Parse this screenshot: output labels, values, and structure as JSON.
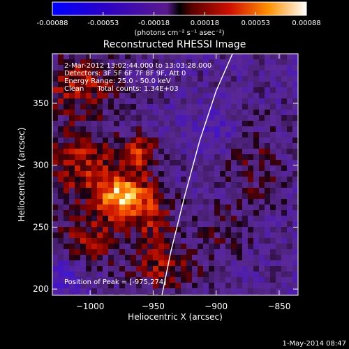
{
  "chart_data": {
    "type": "heatmap",
    "title": "Reconstructed RHESSI Image",
    "colorbar": {
      "ticks": [
        "-0.00088",
        "-0.00053",
        "-0.00018",
        "0.00018",
        "0.00053",
        "0.00088"
      ],
      "units_label": "(photons cm⁻² s⁻¹ asec⁻²)",
      "range": [
        -0.00088,
        0.00088
      ]
    },
    "xlabel": "Heliocentric X (arcsec)",
    "ylabel": "Heliocentric Y (arcsec)",
    "xlim": [
      -1030,
      -835
    ],
    "ylim": [
      195,
      390
    ],
    "xticks": [
      {
        "value": -1000,
        "label": "−1000"
      },
      {
        "value": -950,
        "label": "−950"
      },
      {
        "value": -900,
        "label": "−900"
      },
      {
        "value": -850,
        "label": "−850"
      }
    ],
    "yticks": [
      {
        "value": 200,
        "label": "200"
      },
      {
        "value": 250,
        "label": "250"
      },
      {
        "value": 300,
        "label": "300"
      },
      {
        "value": 350,
        "label": "350"
      }
    ],
    "annotations": [
      "2-Mar-2012 13:02:44.000 to 13:03:28.000",
      "Detectors: 3F 5F 6F 7F 8F 9F, Att 0",
      "Energy Range: 25.0 - 50.0 keV",
      "Clean      Total counts: 1.34E+03"
    ],
    "peak_label": "Position of Peak = [-975,274]",
    "peak": [
      -975,
      274
    ],
    "limb": [
      [
        -943,
        195
      ],
      [
        -936,
        230
      ],
      [
        -925,
        275
      ],
      [
        -913,
        320
      ],
      [
        -900,
        360
      ],
      [
        -887,
        390
      ]
    ],
    "hotspots": [
      {
        "x": -975,
        "y": 274,
        "sx": 14,
        "sy": 12,
        "amp": 1.0
      },
      {
        "x": -1005,
        "y": 300,
        "sx": 22,
        "sy": 22,
        "amp": 0.55
      },
      {
        "x": -1010,
        "y": 365,
        "sx": 22,
        "sy": 16,
        "amp": 0.55
      },
      {
        "x": -960,
        "y": 310,
        "sx": 9,
        "sy": 11,
        "amp": 0.55
      },
      {
        "x": -1000,
        "y": 240,
        "sx": 18,
        "sy": 14,
        "amp": 0.45
      },
      {
        "x": -950,
        "y": 255,
        "sx": 12,
        "sy": 22,
        "amp": 0.45
      },
      {
        "x": -940,
        "y": 215,
        "sx": 20,
        "sy": 12,
        "amp": 0.4
      },
      {
        "x": -870,
        "y": 300,
        "sx": 18,
        "sy": 26,
        "amp": 0.25
      },
      {
        "x": -895,
        "y": 245,
        "sx": 16,
        "sy": 16,
        "amp": 0.2
      },
      {
        "x": -1020,
        "y": 210,
        "sx": 10,
        "sy": 10,
        "amp": -0.35
      },
      {
        "x": -900,
        "y": 330,
        "sx": 14,
        "sy": 14,
        "amp": -0.2
      }
    ]
  },
  "footer_date": "1-May-2014 08:47"
}
